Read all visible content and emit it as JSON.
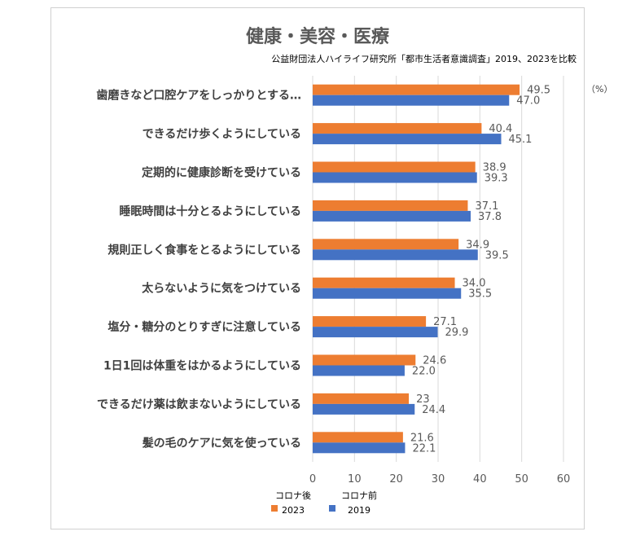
{
  "chart_data": {
    "type": "bar",
    "orientation": "horizontal",
    "title": "健康・美容・医療",
    "subtitle": "公益財団法人ハイライフ研究所「都市生活者意識調査」2019、2023を比較",
    "unit_label": "（%）",
    "categories": [
      "歯磨きなど口腔ケアをしっかりとする…",
      "できるだけ歩くようにしている",
      "定期的に健康診断を受けている",
      "睡眠時間は十分とるようにしている",
      "規則正しく食事をとるようにしている",
      "太らないように気をつけている",
      "塩分・糖分のとりすぎに注意している",
      "1日1回は体重をはかるようにしている",
      "できるだけ薬は飲まないようにしている",
      "髪の毛のケアに気を使っている"
    ],
    "series": [
      {
        "name_line1": "コロナ後",
        "name_line2": "2023",
        "color": "#ED7D31",
        "values": [
          49.5,
          40.4,
          38.9,
          37.1,
          34.9,
          34.0,
          27.1,
          24.6,
          23,
          21.6
        ],
        "labels": [
          "49.5",
          "40.4",
          "38.9",
          "37.1",
          "34.9",
          "34.0",
          "27.1",
          "24.6",
          "23",
          "21.6"
        ]
      },
      {
        "name_line1": "コロナ前",
        "name_line2": "2019",
        "color": "#4472C4",
        "values": [
          47.0,
          45.1,
          39.3,
          37.8,
          39.5,
          35.5,
          29.9,
          22.0,
          24.4,
          22.1
        ],
        "labels": [
          "47.0",
          "45.1",
          "39.3",
          "37.8",
          "39.5",
          "35.5",
          "29.9",
          "22.0",
          "24.4",
          "22.1"
        ]
      }
    ],
    "xlim": [
      0,
      60
    ],
    "xticks": [
      "0",
      "10",
      "20",
      "30",
      "40",
      "50",
      "60"
    ],
    "tick_values": [
      0,
      10,
      20,
      30,
      40,
      50,
      60
    ],
    "grid": true,
    "legend_position": "bottom-left"
  }
}
